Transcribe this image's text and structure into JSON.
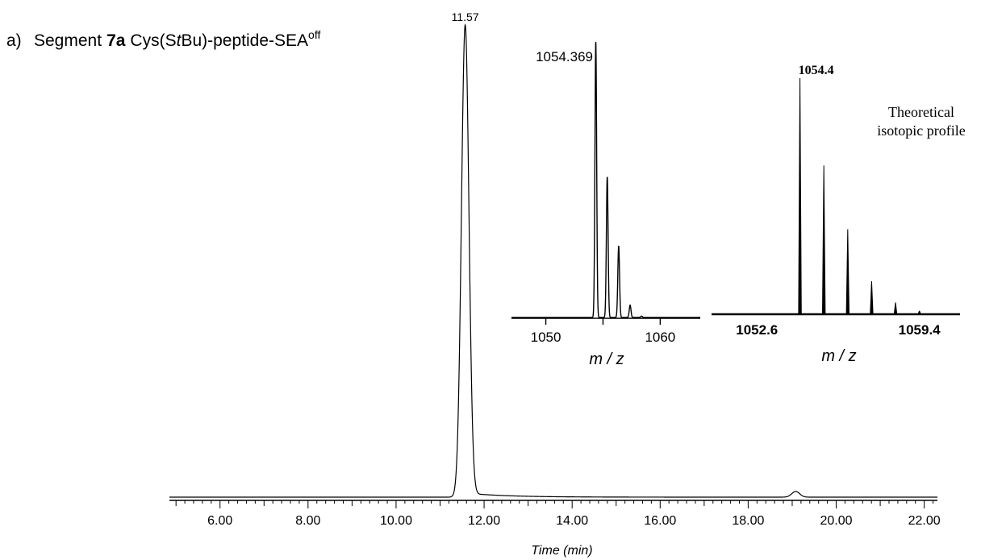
{
  "panel": {
    "letter": "a)",
    "title_prefix": "Segment",
    "title_bold": "7a",
    "title_mid1": "Cys(S",
    "title_italic": "t",
    "title_mid2": "Bu)-peptide-SEA",
    "title_sup": "off"
  },
  "colors": {
    "trace": "#000000",
    "axis": "#000000"
  },
  "chart_data": [
    {
      "type": "line",
      "name_role": "hplc-chromatogram",
      "title": "",
      "xlabel": "Time (min)",
      "ylabel": "",
      "xlim": [
        4.85,
        22.3
      ],
      "ylim": [
        0,
        100
      ],
      "xticks": [
        6,
        8,
        10,
        12,
        14,
        16,
        18,
        20,
        22
      ],
      "xtick_labels": [
        "6.00",
        "8.00",
        "10.00",
        "12.00",
        "14.00",
        "16.00",
        "18.00",
        "20.00",
        "22.00"
      ],
      "minor_tick_step": 0.2,
      "peaks": [
        {
          "x": 11.57,
          "y": 100,
          "label": "11.57"
        },
        {
          "x": 19.08,
          "y": 1.2,
          "label": ""
        }
      ],
      "grid": false
    },
    {
      "type": "line",
      "name_role": "experimental-mass-spectrum",
      "title": "",
      "xlabel": "m / z",
      "ylabel": "",
      "xlim": [
        1047,
        1063.5
      ],
      "ylim": [
        0,
        100
      ],
      "xticks": [
        1050,
        1055,
        1060
      ],
      "xtick_labels": [
        "1050",
        "",
        "1060"
      ],
      "peaks": [
        {
          "x": 1054.37,
          "y": 100,
          "label": "1054.369"
        },
        {
          "x": 1055.37,
          "y": 51,
          "label": ""
        },
        {
          "x": 1056.37,
          "y": 26,
          "label": ""
        },
        {
          "x": 1057.37,
          "y": 4.5,
          "label": ""
        },
        {
          "x": 1058.37,
          "y": 0.5,
          "label": ""
        }
      ],
      "grid": false
    },
    {
      "type": "bar",
      "name_role": "theoretical-isotopic-profile",
      "title": "",
      "xlabel": "m / z",
      "ylabel": "",
      "annotation_line1": "Theoretical",
      "annotation_line2": "isotopic profile",
      "xlim": [
        1050.7,
        1061.1
      ],
      "ylim": [
        0,
        100
      ],
      "xticks": [
        1052.6,
        1059.4
      ],
      "xtick_labels": [
        "1052.6",
        "1059.4"
      ],
      "x": [
        1054.4,
        1055.4,
        1056.4,
        1057.4,
        1058.4,
        1059.4
      ],
      "values": [
        100,
        63,
        36,
        14,
        5,
        1.5
      ],
      "peak_label": "1054.4",
      "grid": false
    }
  ]
}
